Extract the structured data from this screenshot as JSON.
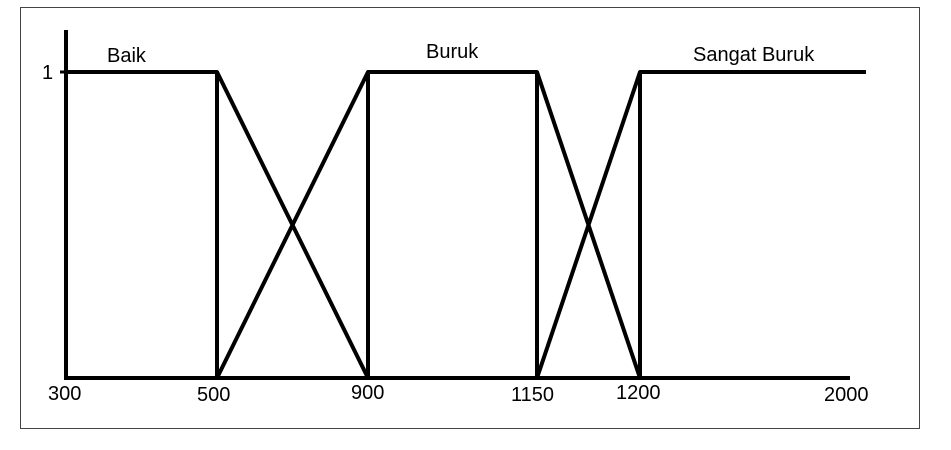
{
  "set_labels": {
    "baik": "Baik",
    "buruk": "Buruk",
    "sangat_buruk": "Sangat Buruk"
  },
  "y_label": "1",
  "x_ticks": [
    "300",
    "500",
    "900",
    "1150",
    "1200",
    "2000"
  ],
  "line_color": "#000000",
  "frame_color": "#444444",
  "chart_data": {
    "type": "line",
    "title": "",
    "xlabel": "",
    "ylabel": "",
    "ylim": [
      0,
      1
    ],
    "x_ticks": [
      300,
      500,
      900,
      1150,
      1200,
      2000
    ],
    "y_ticks": [
      1
    ],
    "series": [
      {
        "name": "Baik",
        "x": [
          300,
          300,
          500,
          900
        ],
        "y": [
          0,
          1,
          1,
          0
        ]
      },
      {
        "name": "Buruk",
        "x": [
          500,
          900,
          1150,
          1200
        ],
        "y": [
          0,
          1,
          1,
          0
        ]
      },
      {
        "name": "Sangat Buruk",
        "x": [
          1150,
          1200,
          2000
        ],
        "y": [
          0,
          1,
          1
        ]
      }
    ]
  }
}
